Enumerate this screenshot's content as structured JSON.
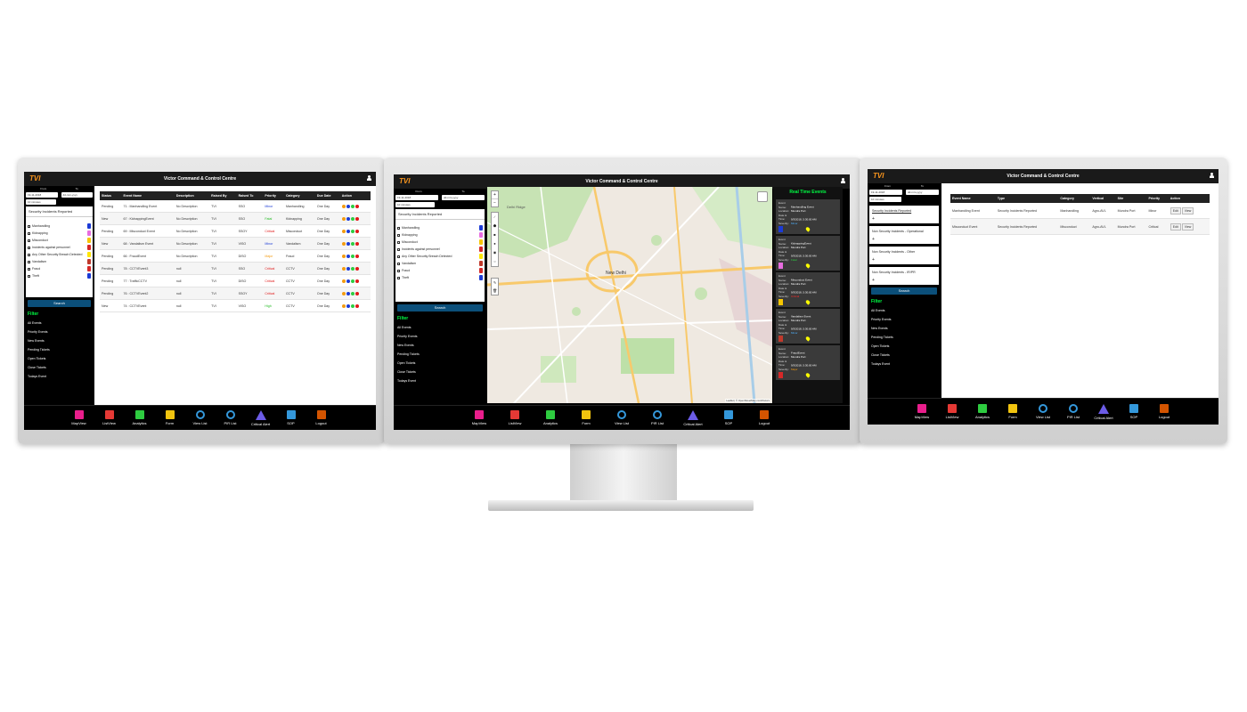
{
  "app": {
    "title": "Victor Command & Control Centre",
    "logo_text": "TVI"
  },
  "side": {
    "from_label": "From",
    "to_label": "To",
    "from_value": "19-11-2018",
    "to_value": "dd-mm-yyyy",
    "interval": "10 minutes",
    "incidents_header": "Security Incidents Reported",
    "incidents": [
      {
        "label": "Manhandling",
        "color": "#1b3bd6"
      },
      {
        "label": "Kidnapping",
        "color": "#e86de0"
      },
      {
        "label": "Misconduct",
        "color": "#f7c600"
      },
      {
        "label": "Incidents against personnel",
        "color": "#d62828"
      },
      {
        "label": "Any Other Security Breach Detected",
        "color": "#ffe600"
      },
      {
        "label": "Vandalism",
        "color": "#c0392b"
      },
      {
        "label": "Fraud",
        "color": "#d62828"
      },
      {
        "label": "Theft",
        "color": "#1b3bd6"
      }
    ],
    "search_label": "Search",
    "filter_label": "Filter",
    "filters": [
      "All Events",
      "Priority Events",
      "New Events",
      "Pending Tickets",
      "Open Tickets",
      "Close Tickets",
      "Todays Event"
    ]
  },
  "list": {
    "headers": [
      "Status",
      "Event Name",
      "Description",
      "Raised By",
      "Raised To",
      "Priority",
      "Category",
      "Due Date",
      "Action"
    ],
    "rows": [
      {
        "status": "Pending",
        "event": "71 : Manhandling Event",
        "desc": "No Description",
        "by": "TVI",
        "to": "SSO",
        "priority": "Minor",
        "pcolor": "#1b3bd6",
        "category": "Manhandling",
        "due": "One Day"
      },
      {
        "status": "New",
        "event": "67 : KidnappingEvent",
        "desc": "No Description",
        "by": "TVI",
        "to": "SSO",
        "priority": "Fatal",
        "pcolor": "#22bb22",
        "category": "Kidnapping",
        "due": "One Day"
      },
      {
        "status": "Pending",
        "event": "69 : Misconduct Event",
        "desc": "No Description",
        "by": "TVI",
        "to": "SSOY",
        "priority": "Critical",
        "pcolor": "#e01818",
        "category": "Misconduct",
        "due": "One Day"
      },
      {
        "status": "New",
        "event": "68 : Vandalism Event",
        "desc": "No Description",
        "by": "TVI",
        "to": "VISO",
        "priority": "Minor",
        "pcolor": "#1b3bd6",
        "category": "Vandalism",
        "due": "One Day"
      },
      {
        "status": "Pending",
        "event": "66 : FraudEvent",
        "desc": "No Description",
        "by": "TVI",
        "to": "DISO",
        "priority": "Major",
        "pcolor": "#f39c12",
        "category": "Fraud",
        "due": "One Day"
      },
      {
        "status": "Pending",
        "event": "78 : CCTVEvent3",
        "desc": "null",
        "by": "TVI",
        "to": "SSO",
        "priority": "Critical",
        "pcolor": "#e01818",
        "category": "CCTV",
        "due": "One Day"
      },
      {
        "status": "Pending",
        "event": "77 : TrafficCCTV",
        "desc": "null",
        "by": "TVI",
        "to": "DISO",
        "priority": "Critical",
        "pcolor": "#e01818",
        "category": "CCTV",
        "due": "One Day"
      },
      {
        "status": "Pending",
        "event": "76 : CCTVEvent2",
        "desc": "null",
        "by": "TVI",
        "to": "SSOY",
        "priority": "Critical",
        "pcolor": "#e01818",
        "category": "CCTV",
        "due": "One Day"
      },
      {
        "status": "New",
        "event": "74 : CCTVEvent",
        "desc": "null",
        "by": "TVI",
        "to": "VISO",
        "priority": "High",
        "pcolor": "#22bb22",
        "category": "CCTV",
        "due": "One Day"
      }
    ]
  },
  "nav": [
    {
      "label": "MapView",
      "color": "#e91e8c",
      "icon": "map-icon"
    },
    {
      "label": "ListView",
      "color": "#e53935",
      "icon": "list-icon"
    },
    {
      "label": "Analytics",
      "color": "#2ecc40",
      "icon": "bar-chart-icon"
    },
    {
      "label": "Form",
      "color": "#f1c40f",
      "icon": "form-icon"
    },
    {
      "label": "View List",
      "color": "#3498db",
      "icon": "search-icon"
    },
    {
      "label": "PIR List",
      "color": "#3498db",
      "icon": "search-icon"
    },
    {
      "label": "Critical Alert",
      "color": "#6c5ce7",
      "icon": "alert-icon"
    },
    {
      "label": "SOP",
      "color": "#3498db",
      "icon": "checklist-icon"
    },
    {
      "label": "Logout",
      "color": "#d35400",
      "icon": "user-icon"
    }
  ],
  "map": {
    "places": [
      "Delhi Ridge",
      "New Delhi"
    ],
    "attribution": "Leaflet | © OpenStreetMap contributors"
  },
  "realtime": {
    "title": "Real Time Events",
    "field_labels": {
      "name": "Event Name:",
      "location": "Location:",
      "datetime": "Date & Time:",
      "severity": "Severity:"
    },
    "cards": [
      {
        "name": "Manhandling Event",
        "location": "Mundra Port",
        "datetime": "9/3/2018, 5:30:00 AM",
        "severity": "Minor",
        "scolor": "#4fb3ff",
        "icolor": "#1b3bd6"
      },
      {
        "name": "KidnappingEvent",
        "location": "Mundra Port",
        "datetime": "9/3/2018, 5:30:00 AM",
        "severity": "Fatal",
        "scolor": "#2ecc40",
        "icolor": "#e86de0"
      },
      {
        "name": "Misconduct Event",
        "location": "Mundra Port",
        "datetime": "9/3/2018, 5:30:00 AM",
        "severity": "Critical",
        "scolor": "#ff2b2b",
        "icolor": "#f7c600"
      },
      {
        "name": "Vandalism Event",
        "location": "Mundra Port",
        "datetime": "9/3/2018, 5:30:00 AM",
        "severity": "Minor",
        "scolor": "#4fb3ff",
        "icolor": "#c0392b"
      },
      {
        "name": "FraudEvent",
        "location": "Mundra Port",
        "datetime": "9/3/2018, 5:30:00 AM",
        "severity": "Major",
        "scolor": "#f39c12",
        "icolor": "#d62828"
      }
    ]
  },
  "right": {
    "categories": [
      "Security Incidents Reported",
      "Non Security Incidents - Operational",
      "Non Security Incidents - Other",
      "Non Security Incidents - IR/PR"
    ],
    "headers": [
      "Event Name",
      "Type",
      "Category",
      "Vertical",
      "Site",
      "Priority",
      "Action"
    ],
    "rows": [
      {
        "event": "Manhandling Event",
        "type": "Security Incidents Reported",
        "category": "Manhandling",
        "vertical": "Agro-AVL",
        "site": "Mundra Port",
        "priority": "Minor"
      },
      {
        "event": "Misconduct Event",
        "type": "Security Incidents Reported",
        "category": "Misconduct",
        "vertical": "Agro-AVL",
        "site": "Mundra Port",
        "priority": "Critical"
      }
    ],
    "edit_label": "Edit",
    "view_label": "View"
  }
}
